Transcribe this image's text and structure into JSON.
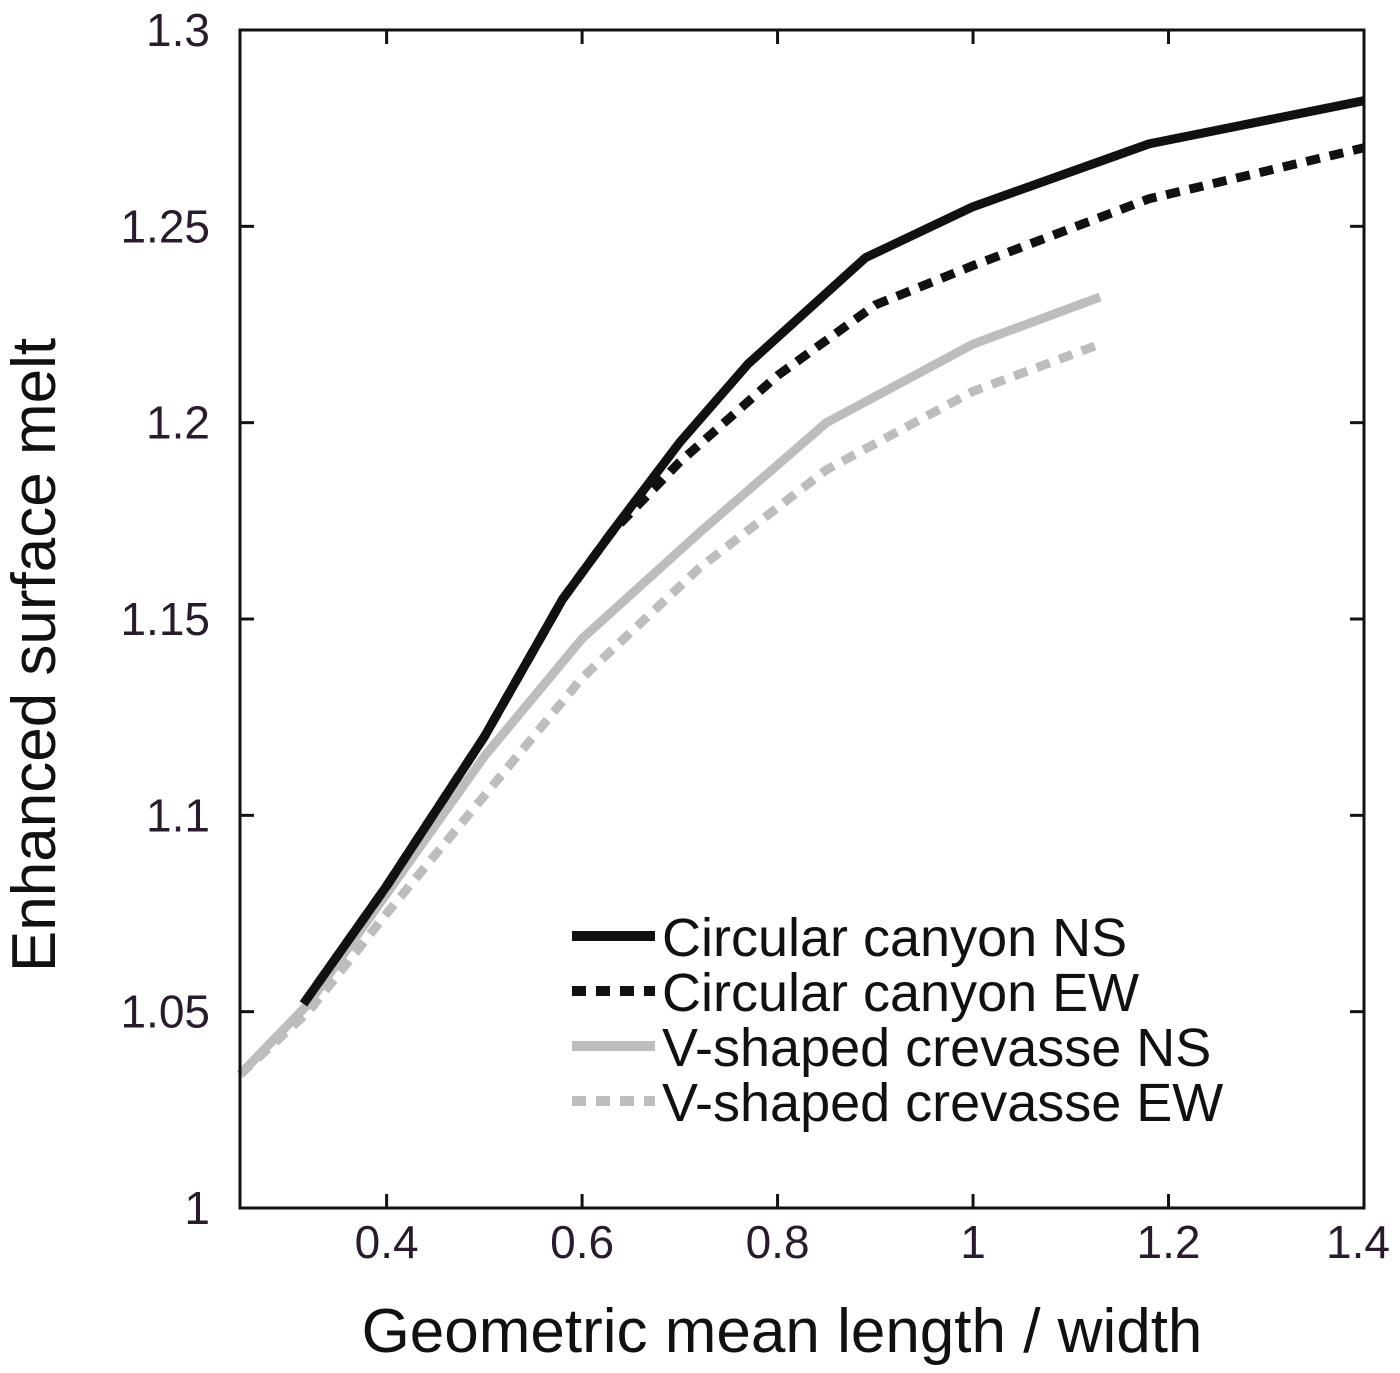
{
  "chart_data": {
    "type": "line",
    "xlabel": "Geometric mean length / width",
    "ylabel": "Enhanced surface melt",
    "xlim": [
      0.25,
      1.4
    ],
    "ylim": [
      1.0,
      1.3
    ],
    "xticks": [
      0.4,
      0.6,
      0.8,
      1,
      1.2,
      1.4
    ],
    "xtick_labels": [
      "0.4",
      "0.6",
      "0.8",
      "1",
      "1.2",
      "1.4"
    ],
    "yticks": [
      1,
      1.05,
      1.1,
      1.15,
      1.2,
      1.25,
      1.3
    ],
    "ytick_labels": [
      "1",
      "1.05",
      "1.1",
      "1.15",
      "1.2",
      "1.25",
      "1.3"
    ],
    "grid": false,
    "legend_position": "bottom-right",
    "series": [
      {
        "name": "Circular canyon NS",
        "color": "#111111",
        "dash": "solid",
        "x": [
          0.315,
          0.4,
          0.5,
          0.58,
          0.63,
          0.7,
          0.77,
          0.89,
          1.0,
          1.18,
          1.4
        ],
        "y": [
          1.052,
          1.082,
          1.12,
          1.155,
          1.172,
          1.195,
          1.215,
          1.242,
          1.255,
          1.271,
          1.282
        ]
      },
      {
        "name": "Circular canyon EW",
        "color": "#111111",
        "dash": "dashed",
        "x": [
          0.315,
          0.4,
          0.5,
          0.58,
          0.63,
          0.7,
          0.8,
          0.9,
          1.0,
          1.18,
          1.4
        ],
        "y": [
          1.052,
          1.082,
          1.12,
          1.155,
          1.172,
          1.19,
          1.212,
          1.23,
          1.24,
          1.257,
          1.27
        ]
      },
      {
        "name": "V-shaped crevasse NS",
        "color": "#bdbdbd",
        "dash": "solid",
        "x": [
          0.25,
          0.32,
          0.4,
          0.5,
          0.6,
          0.72,
          0.85,
          1.0,
          1.13
        ],
        "y": [
          1.034,
          1.052,
          1.08,
          1.115,
          1.145,
          1.172,
          1.2,
          1.22,
          1.232
        ]
      },
      {
        "name": "V-shaped crevasse EW",
        "color": "#bdbdbd",
        "dash": "dashed",
        "x": [
          0.25,
          0.32,
          0.4,
          0.5,
          0.6,
          0.72,
          0.85,
          1.0,
          1.13
        ],
        "y": [
          1.034,
          1.05,
          1.075,
          1.105,
          1.135,
          1.163,
          1.188,
          1.208,
          1.22
        ]
      }
    ]
  }
}
